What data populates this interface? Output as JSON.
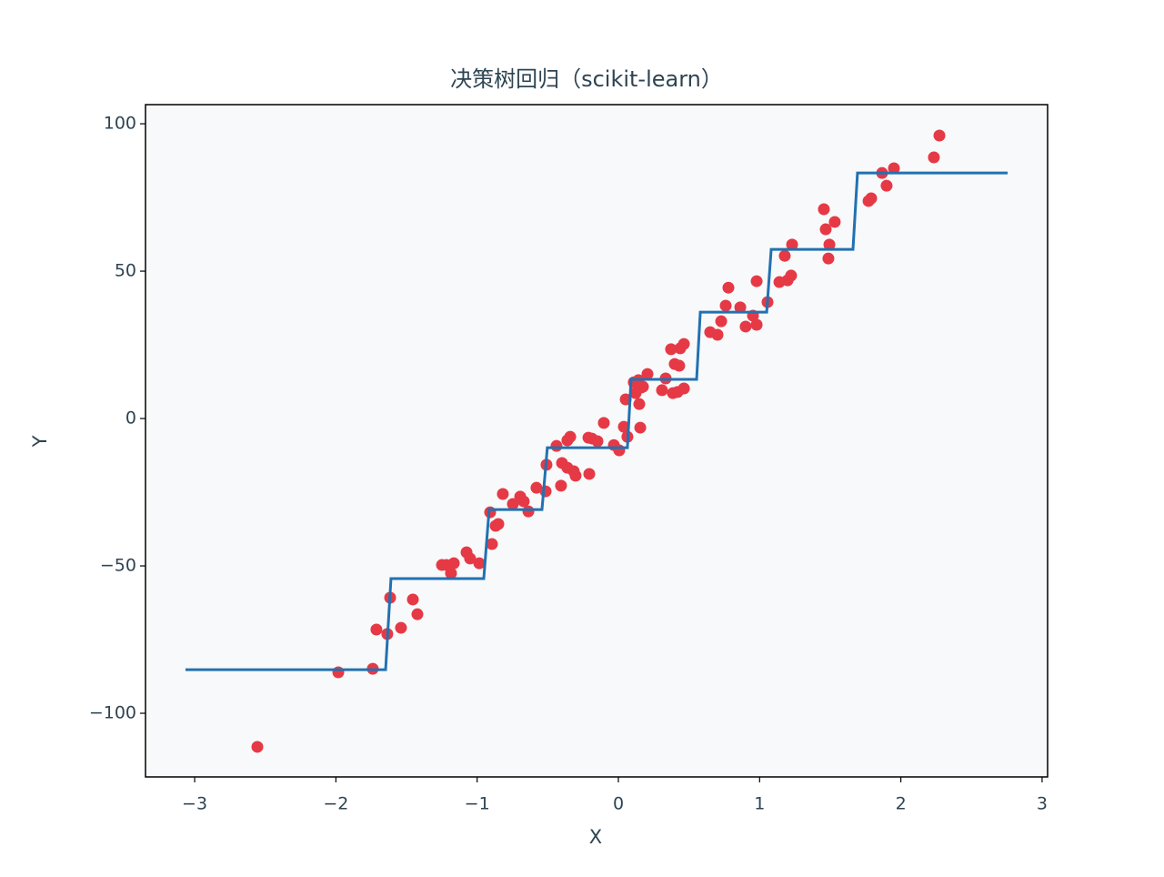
{
  "chart_data": {
    "type": "scatter",
    "title": "决策树回归（scikit-learn）",
    "xlabel": "X",
    "ylabel": "Y",
    "xlim": [
      -3.348,
      3.039
    ],
    "ylim": [
      -121.6,
      106.5
    ],
    "xticks": [
      {
        "value": -3,
        "label": "−3"
      },
      {
        "value": -2,
        "label": "−2"
      },
      {
        "value": -1,
        "label": "−1"
      },
      0,
      1,
      2,
      3
    ],
    "yticks": [
      {
        "value": -100,
        "label": "−100"
      },
      {
        "value": -50,
        "label": "−50"
      },
      0,
      50,
      100
    ],
    "series": [
      {
        "type": "scatter",
        "color": "#e63946",
        "x": [
          -2.556,
          -1.983,
          -1.739,
          -1.713,
          -1.636,
          -1.616,
          -1.539,
          -1.455,
          -1.423,
          -1.249,
          -1.217,
          -1.185,
          -1.165,
          -1.075,
          -1.05,
          -0.985,
          -0.908,
          -0.895,
          -0.869,
          -0.85,
          -0.818,
          -0.747,
          -0.695,
          -0.67,
          -0.637,
          -0.58,
          -0.515,
          -0.509,
          -0.438,
          -0.406,
          -0.399,
          -0.361,
          -0.361,
          -0.341,
          -0.316,
          -0.303,
          -0.212,
          -0.206,
          -0.187,
          -0.148,
          -0.103,
          -0.032,
          0.006,
          0.039,
          0.052,
          0.064,
          0.109,
          0.122,
          0.142,
          0.148,
          0.155,
          0.161,
          0.174,
          0.206,
          0.309,
          0.335,
          0.373,
          0.386,
          0.399,
          0.419,
          0.431,
          0.438,
          0.464,
          0.464,
          0.65,
          0.702,
          0.728,
          0.76,
          0.779,
          0.863,
          0.901,
          0.953,
          0.979,
          0.979,
          1.056,
          1.14,
          1.178,
          1.198,
          1.223,
          1.23,
          1.455,
          1.468,
          1.487,
          1.494,
          1.532,
          1.771,
          1.79,
          1.867,
          1.899,
          1.951,
          2.234,
          2.273
        ],
        "values": [
          -111.4,
          -86.1,
          -84.9,
          -71.6,
          -73.1,
          -60.8,
          -71.0,
          -61.4,
          -66.4,
          -49.7,
          -49.7,
          -52.5,
          -49.1,
          -45.4,
          -47.5,
          -49.1,
          -31.8,
          -42.6,
          -36.4,
          -35.8,
          -25.6,
          -29.0,
          -26.5,
          -28.1,
          -31.5,
          -23.5,
          -24.7,
          -15.7,
          -9.3,
          -22.8,
          -15.1,
          -16.7,
          -7.4,
          -6.2,
          -17.9,
          -19.4,
          -6.5,
          -18.8,
          -6.8,
          -7.7,
          -1.5,
          -9.0,
          -10.8,
          -2.8,
          6.5,
          -6.2,
          12.3,
          8.6,
          13.0,
          4.9,
          -3.1,
          10.5,
          10.8,
          15.1,
          9.6,
          13.6,
          23.5,
          8.6,
          18.5,
          9.0,
          17.9,
          23.8,
          25.3,
          10.2,
          29.3,
          28.4,
          33.0,
          38.3,
          44.4,
          37.7,
          31.2,
          34.9,
          31.8,
          46.6,
          39.5,
          46.3,
          55.2,
          46.9,
          48.5,
          59.0,
          71.0,
          64.2,
          54.3,
          59.0,
          66.7,
          73.8,
          74.7,
          83.3,
          79.0,
          84.9,
          88.6,
          96.0
        ]
      },
      {
        "type": "line",
        "color": "#2271b1",
        "x": [
          -3.065,
          -1.648,
          -1.61,
          -0.953,
          -0.915,
          -0.541,
          -0.503,
          0.064,
          0.09,
          0.554,
          0.58,
          1.05,
          1.082,
          1.661,
          1.693,
          2.756
        ],
        "values": [
          -85.2,
          -85.2,
          -54.3,
          -54.3,
          -30.9,
          -30.9,
          -9.9,
          -9.9,
          13.3,
          13.3,
          36.1,
          36.1,
          57.4,
          57.4,
          83.3,
          83.3
        ]
      }
    ]
  }
}
